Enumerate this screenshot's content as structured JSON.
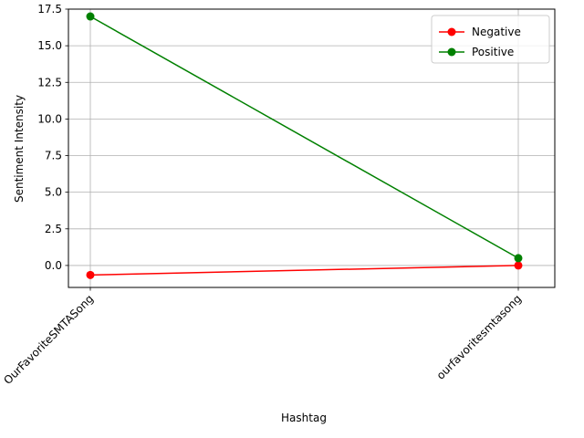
{
  "chart_data": {
    "type": "line",
    "title": "",
    "xlabel": "Hashtag",
    "ylabel": "Sentiment Intensity",
    "categories": [
      "OurFavoriteSMTASong",
      "ourfavoritesmtasong"
    ],
    "series": [
      {
        "name": "Negative",
        "color": "#ff0000",
        "values": [
          -0.65,
          0.0
        ]
      },
      {
        "name": "Positive",
        "color": "#008000",
        "values": [
          17.0,
          0.5
        ]
      }
    ],
    "ylim": [
      -1.5,
      17.5
    ],
    "yticks": [
      0.0,
      2.5,
      5.0,
      7.5,
      10.0,
      12.5,
      15.0,
      17.5
    ],
    "ytick_labels": [
      "0.0",
      "2.5",
      "5.0",
      "7.5",
      "10.0",
      "12.5",
      "15.0",
      "17.5"
    ],
    "grid": true,
    "legend_position": "top-right",
    "x_tick_rotation": 45
  }
}
